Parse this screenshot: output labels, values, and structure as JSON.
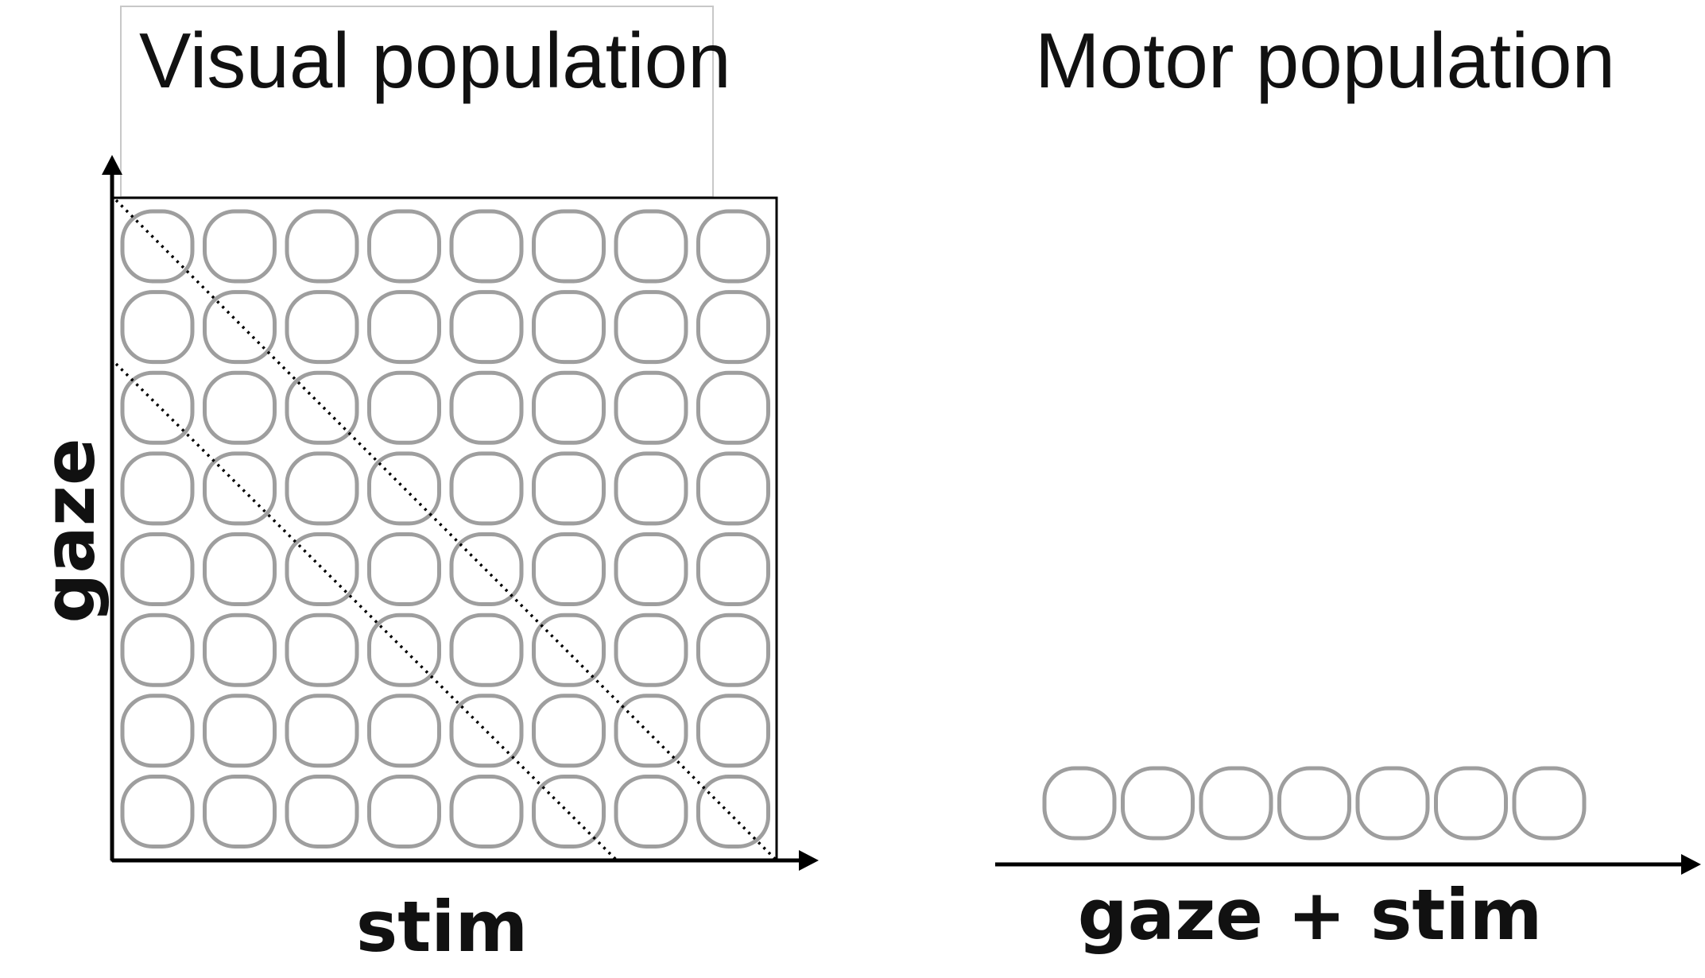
{
  "visual_panel": {
    "title": "Visual population",
    "x_label": "stim",
    "y_label": "gaze",
    "grid_rows": 8,
    "grid_cols": 8
  },
  "motor_panel": {
    "title": "Motor population",
    "x_label": "gaze + stim",
    "neuron_count": 7
  },
  "colors": {
    "neuron_outline": "#9e9e9e",
    "axis": "#000000",
    "text": "#111111"
  }
}
